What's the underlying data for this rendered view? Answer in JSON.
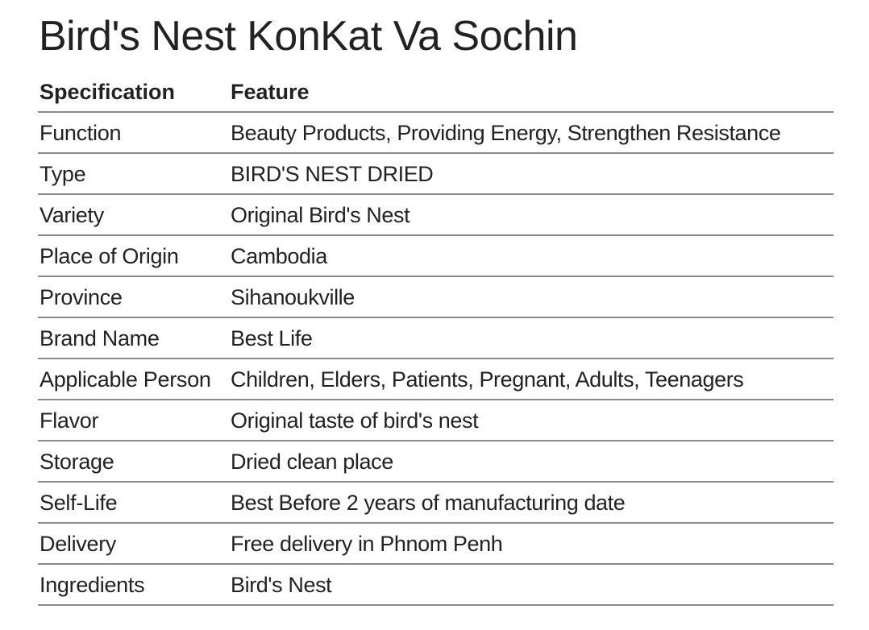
{
  "title": "Bird's Nest KonKat Va Sochin",
  "table": {
    "headers": {
      "specification": "Specification",
      "feature": "Feature"
    },
    "rows": [
      {
        "spec": "Function",
        "feature": "Beauty Products, Providing Energy, Strengthen Resistance"
      },
      {
        "spec": "Type",
        "feature": "BIRD'S NEST DRIED"
      },
      {
        "spec": "Variety",
        "feature": "Original Bird's Nest"
      },
      {
        "spec": "Place of Origin",
        "feature": "Cambodia"
      },
      {
        "spec": "Province",
        "feature": "Sihanoukville"
      },
      {
        "spec": "Brand Name",
        "feature": "Best Life"
      },
      {
        "spec": "Applicable Person",
        "feature": "Children, Elders, Patients, Pregnant, Adults, Teenagers"
      },
      {
        "spec": "Flavor",
        "feature": "Original taste of bird's nest"
      },
      {
        "spec": "Storage",
        "feature": "Dried clean place"
      },
      {
        "spec": "Self-Life",
        "feature": "Best Before 2 years of manufacturing date"
      },
      {
        "spec": "Delivery",
        "feature": "Free delivery in Phnom Penh"
      },
      {
        "spec": "Ingredients",
        "feature": "Bird's Nest"
      }
    ]
  }
}
